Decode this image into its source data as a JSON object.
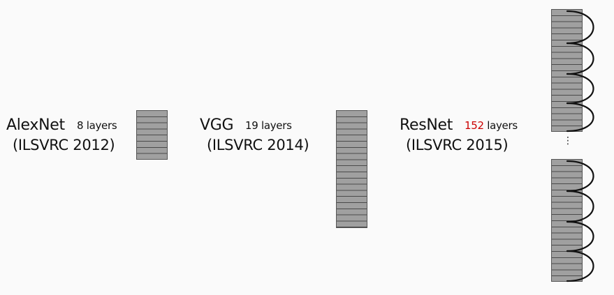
{
  "networks": [
    {
      "name": "AlexNet",
      "competition": "(ILSVRC 2012)",
      "layer_count": "8",
      "layer_word": "layers",
      "count_color": "#111111"
    },
    {
      "name": "VGG",
      "competition": "(ILSVRC 2014)",
      "layer_count": "19",
      "layer_word": "layers",
      "count_color": "#111111"
    },
    {
      "name": "ResNet",
      "competition": "(ILSVRC 2015)",
      "layer_count": "152",
      "layer_word": "layers",
      "count_color": "#cc0000"
    }
  ],
  "resnet_gap_symbol": "⋮"
}
